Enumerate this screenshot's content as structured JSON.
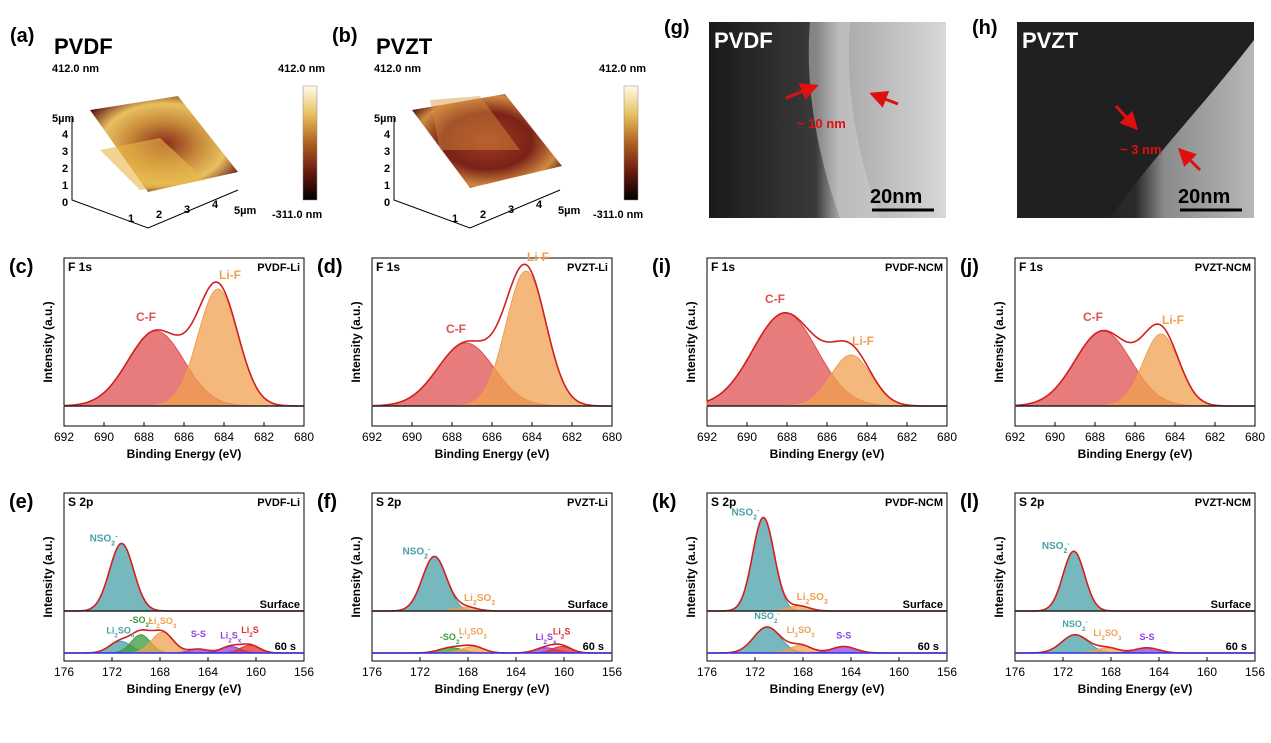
{
  "figure": {
    "afm": [
      {
        "label": "(a)",
        "material": "PVDF",
        "height_max": "412.0 nm",
        "colorbar_max": "412.0 nm",
        "colorbar_min": "-311.0 nm",
        "axis_ticks": [
          "1",
          "2",
          "3",
          "4",
          "5µm"
        ],
        "z_ticks": [
          "5µm",
          "4",
          "3",
          "2",
          "1",
          "0"
        ]
      },
      {
        "label": "(b)",
        "material": "PVZT",
        "height_max": "412.0 nm",
        "colorbar_max": "412.0 nm",
        "colorbar_min": "-311.0 nm",
        "axis_ticks": [
          "1",
          "2",
          "3",
          "4",
          "5µm"
        ],
        "z_ticks": [
          "5µm",
          "4",
          "3",
          "2",
          "1",
          "0"
        ]
      }
    ],
    "tem": [
      {
        "label": "(g)",
        "material": "PVDF",
        "thickness": "~ 10 nm",
        "scale_bar": "20nm"
      },
      {
        "label": "(h)",
        "material": "PVZT",
        "thickness": "~ 3 nm",
        "scale_bar": "20nm"
      }
    ]
  },
  "colors": {
    "cf": "#e05050",
    "lif": "#f0a050",
    "nso2": "#4aa0a8",
    "li2so3": "#f0a050",
    "so2": "#3a9a3a",
    "lisx": "#9040e0",
    "li2s": "#e03030",
    "ss": "#9040e0",
    "fit": "#d02020",
    "bg": "#222222",
    "surface": "#f0a050",
    "sixty": "#3030e0"
  },
  "chart_data": [
    {
      "id": "c",
      "label": "(c)",
      "type": "line",
      "title": "F 1s",
      "sample": "PVDF-Li",
      "xlabel": "Binding Energy (eV)",
      "ylabel": "Intensity (a.u.)",
      "xlim": [
        692,
        680
      ],
      "ylim": [
        0,
        1
      ],
      "xticks": [
        692,
        690,
        688,
        686,
        684,
        682,
        680
      ],
      "peaks": [
        {
          "name": "C-F",
          "center": 687.4,
          "height": 0.5,
          "width": 1.4,
          "color": "cf"
        },
        {
          "name": "Li-F",
          "center": 684.3,
          "height": 0.78,
          "width": 1.0,
          "color": "lif"
        }
      ]
    },
    {
      "id": "d",
      "label": "(d)",
      "type": "line",
      "title": "F 1s",
      "sample": "PVZT-Li",
      "xlabel": "Binding Energy (eV)",
      "ylabel": "Intensity (a.u.)",
      "xlim": [
        692,
        680
      ],
      "ylim": [
        0,
        1
      ],
      "xticks": [
        692,
        690,
        688,
        686,
        684,
        682,
        680
      ],
      "peaks": [
        {
          "name": "C-F",
          "center": 687.3,
          "height": 0.42,
          "width": 1.4,
          "color": "cf"
        },
        {
          "name": "Li-F",
          "center": 684.3,
          "height": 0.9,
          "width": 1.0,
          "color": "lif"
        }
      ]
    },
    {
      "id": "i",
      "label": "(i)",
      "type": "line",
      "title": "F 1s",
      "sample": "PVDF-NCM",
      "xlabel": "Binding Energy (eV)",
      "ylabel": "Intensity (a.u.)",
      "xlim": [
        692,
        680
      ],
      "ylim": [
        0,
        1
      ],
      "xticks": [
        692,
        690,
        688,
        686,
        684,
        682,
        680
      ],
      "peaks": [
        {
          "name": "C-F",
          "center": 688.1,
          "height": 0.62,
          "width": 1.6,
          "color": "cf"
        },
        {
          "name": "Li-F",
          "center": 684.8,
          "height": 0.34,
          "width": 1.0,
          "color": "lif"
        }
      ]
    },
    {
      "id": "j",
      "label": "(j)",
      "type": "line",
      "title": "F 1s",
      "sample": "PVZT-NCM",
      "xlabel": "Binding Energy (eV)",
      "ylabel": "Intensity (a.u.)",
      "xlim": [
        692,
        680
      ],
      "ylim": [
        0,
        1
      ],
      "xticks": [
        692,
        690,
        688,
        686,
        684,
        682,
        680
      ],
      "peaks": [
        {
          "name": "C-F",
          "center": 687.6,
          "height": 0.5,
          "width": 1.4,
          "color": "cf"
        },
        {
          "name": "Li-F",
          "center": 684.7,
          "height": 0.48,
          "width": 0.9,
          "color": "lif"
        }
      ]
    },
    {
      "id": "e",
      "label": "(e)",
      "type": "line",
      "title": "S 2p",
      "sample": "PVDF-Li",
      "xlabel": "Binding Energy (eV)",
      "ylabel": "Intensity (a.u.)",
      "xlim": [
        176,
        156
      ],
      "ylim": [
        0,
        1
      ],
      "xticks": [
        176,
        172,
        168,
        164,
        160,
        156
      ],
      "surface_label": "Surface",
      "depth_label": "60 s",
      "surface_peaks": [
        {
          "name": "NSO2-",
          "center": 171.2,
          "height": 0.52,
          "width": 1.0,
          "color": "nso2"
        }
      ],
      "depth_peaks": [
        {
          "name": "Li2SO4",
          "center": 171.3,
          "height": 0.09,
          "width": 0.9,
          "color": "nso2"
        },
        {
          "name": "-SO2-",
          "center": 169.6,
          "height": 0.14,
          "width": 0.8,
          "color": "so2"
        },
        {
          "name": "Li2SO3",
          "center": 167.8,
          "height": 0.16,
          "width": 0.9,
          "color": "li2so3"
        },
        {
          "name": "S-S",
          "center": 164.8,
          "height": 0.03,
          "width": 0.8,
          "color": "ss"
        },
        {
          "name": "Li2Sx",
          "center": 162.1,
          "height": 0.05,
          "width": 0.8,
          "color": "lisx"
        },
        {
          "name": "Li2S",
          "center": 160.5,
          "height": 0.06,
          "width": 0.8,
          "color": "li2s"
        }
      ]
    },
    {
      "id": "f",
      "label": "(f)",
      "type": "line",
      "title": "S 2p",
      "sample": "PVZT-Li",
      "xlabel": "Binding Energy (eV)",
      "ylabel": "Intensity (a.u.)",
      "xlim": [
        176,
        156
      ],
      "ylim": [
        0,
        1
      ],
      "xticks": [
        176,
        172,
        168,
        164,
        160,
        156
      ],
      "surface_label": "Surface",
      "depth_label": "60 s",
      "surface_peaks": [
        {
          "name": "NSO2-",
          "center": 170.8,
          "height": 0.42,
          "width": 1.0,
          "color": "nso2"
        },
        {
          "name": "Li2SO3",
          "center": 168.2,
          "height": 0.03,
          "width": 0.9,
          "color": "li2so3"
        }
      ],
      "depth_peaks": [
        {
          "name": "-SO2-",
          "center": 169.4,
          "height": 0.04,
          "width": 1.0,
          "color": "so2"
        },
        {
          "name": "Li2SO3",
          "center": 167.6,
          "height": 0.05,
          "width": 0.9,
          "color": "li2so3"
        },
        {
          "name": "Li2Sx",
          "center": 161.5,
          "height": 0.04,
          "width": 0.9,
          "color": "lisx"
        },
        {
          "name": "Li2S",
          "center": 160.2,
          "height": 0.05,
          "width": 0.8,
          "color": "li2s"
        }
      ]
    },
    {
      "id": "k",
      "label": "(k)",
      "type": "line",
      "title": "S 2p",
      "sample": "PVDF-NCM",
      "xlabel": "Binding Energy (eV)",
      "ylabel": "Intensity (a.u.)",
      "xlim": [
        176,
        156
      ],
      "ylim": [
        0,
        1
      ],
      "xticks": [
        176,
        172,
        168,
        164,
        160,
        156
      ],
      "surface_label": "Surface",
      "depth_label": "60 s",
      "surface_peaks": [
        {
          "name": "NSO2-",
          "center": 171.3,
          "height": 0.72,
          "width": 0.9,
          "color": "nso2"
        },
        {
          "name": "Li2SO3",
          "center": 168.4,
          "height": 0.04,
          "width": 0.9,
          "color": "li2so3"
        }
      ],
      "depth_peaks": [
        {
          "name": "NSO2-",
          "center": 171.0,
          "height": 0.2,
          "width": 1.1,
          "color": "nso2"
        },
        {
          "name": "Li2SO3",
          "center": 168.2,
          "height": 0.06,
          "width": 0.9,
          "color": "li2so3"
        },
        {
          "name": "S-S",
          "center": 164.6,
          "height": 0.05,
          "width": 1.0,
          "color": "ss"
        }
      ]
    },
    {
      "id": "l",
      "label": "(l)",
      "type": "line",
      "title": "S 2p",
      "sample": "PVZT-NCM",
      "xlabel": "Binding Energy (eV)",
      "ylabel": "Intensity (a.u.)",
      "xlim": [
        176,
        156
      ],
      "ylim": [
        0,
        1
      ],
      "xticks": [
        176,
        172,
        168,
        164,
        160,
        156
      ],
      "surface_label": "Surface",
      "depth_label": "60 s",
      "surface_peaks": [
        {
          "name": "NSO2-",
          "center": 171.1,
          "height": 0.46,
          "width": 0.9,
          "color": "nso2"
        }
      ],
      "depth_peaks": [
        {
          "name": "NSO2-",
          "center": 171.0,
          "height": 0.14,
          "width": 1.1,
          "color": "nso2"
        },
        {
          "name": "Li2SO3",
          "center": 168.3,
          "height": 0.04,
          "width": 0.9,
          "color": "li2so3"
        },
        {
          "name": "S-S",
          "center": 165.0,
          "height": 0.04,
          "width": 1.0,
          "color": "ss"
        }
      ]
    }
  ]
}
